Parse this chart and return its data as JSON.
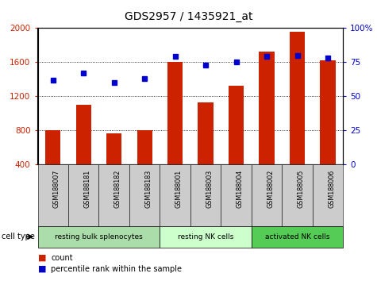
{
  "title": "GDS2957 / 1435921_at",
  "samples": [
    "GSM188007",
    "GSM188181",
    "GSM188182",
    "GSM188183",
    "GSM188001",
    "GSM188003",
    "GSM188004",
    "GSM188002",
    "GSM188005",
    "GSM188006"
  ],
  "counts": [
    800,
    1100,
    760,
    800,
    1600,
    1130,
    1320,
    1720,
    1960,
    1620
  ],
  "percentiles": [
    62,
    67,
    60,
    63,
    79,
    73,
    75,
    79,
    80,
    78
  ],
  "cell_types": [
    {
      "label": "resting bulk splenocytes",
      "start": 0,
      "end": 3,
      "color": "#aaddaa"
    },
    {
      "label": "resting NK cells",
      "start": 4,
      "end": 6,
      "color": "#ccffcc"
    },
    {
      "label": "activated NK cells",
      "start": 7,
      "end": 9,
      "color": "#55cc55"
    }
  ],
  "bar_color": "#cc2200",
  "dot_color": "#0000cc",
  "ticklabel_bg": "#cccccc",
  "plot_bg": "#ffffff",
  "ymin": 400,
  "ymax": 2000,
  "y2min": 0,
  "y2max": 100,
  "yticks": [
    400,
    800,
    1200,
    1600,
    2000
  ],
  "y2ticks": [
    0,
    25,
    50,
    75,
    100
  ],
  "grid_values": [
    800,
    1200,
    1600
  ],
  "title_fontsize": 10,
  "tick_fontsize": 7.5
}
